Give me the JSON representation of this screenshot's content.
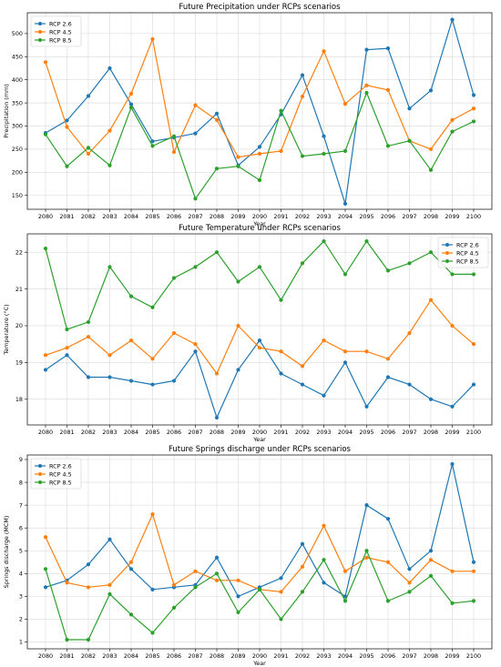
{
  "chart_data": [
    {
      "type": "line",
      "title": "Future Precipitation under RCPs scenarios",
      "xlabel": "Year",
      "ylabel": "Precipitation (mm)",
      "x": [
        "2080",
        "2081",
        "2082",
        "2083",
        "2084",
        "2085",
        "2086",
        "2087",
        "2088",
        "2089",
        "2090",
        "2091",
        "2092",
        "2093",
        "2094",
        "2095",
        "2096",
        "2097",
        "2098",
        "2099",
        "2100"
      ],
      "ylim": [
        120,
        545
      ],
      "yticks": [
        150,
        200,
        250,
        300,
        350,
        400,
        450,
        500
      ],
      "ytick_labels": [
        "150",
        "200",
        "250",
        "300",
        "350",
        "400",
        "450",
        "500"
      ],
      "grid": true,
      "legend": "upper left",
      "series": [
        {
          "name": "RCP 2.6",
          "color": "#1f77b4",
          "values": [
            285,
            312,
            365,
            425,
            347,
            267,
            275,
            284,
            327,
            215,
            255,
            325,
            410,
            278,
            132,
            465,
            468,
            338,
            377,
            530,
            367
          ]
        },
        {
          "name": "RCP 4.5",
          "color": "#ff7f0e",
          "values": [
            438,
            298,
            240,
            290,
            370,
            488,
            244,
            345,
            313,
            233,
            240,
            246,
            364,
            462,
            348,
            388,
            378,
            268,
            250,
            313,
            338
          ]
        },
        {
          "name": "RCP 8.5",
          "color": "#2ca02c",
          "values": [
            282,
            213,
            253,
            215,
            340,
            257,
            278,
            143,
            208,
            213,
            183,
            333,
            235,
            240,
            246,
            372,
            257,
            268,
            205,
            288,
            310
          ]
        }
      ]
    },
    {
      "type": "line",
      "title": "Future Temperature under RCPs scenarios",
      "xlabel": "Year",
      "ylabel": "Temperature (°C)",
      "x": [
        "2080",
        "2081",
        "2082",
        "2083",
        "2084",
        "2085",
        "2086",
        "2087",
        "2088",
        "2089",
        "2090",
        "2091",
        "2092",
        "2093",
        "2094",
        "2095",
        "2096",
        "2097",
        "2098",
        "2099",
        "2100"
      ],
      "ylim": [
        17.3,
        22.5
      ],
      "yticks": [
        18,
        19,
        20,
        21,
        22
      ],
      "ytick_labels": [
        "18",
        "19",
        "20",
        "21",
        "22"
      ],
      "grid": true,
      "legend": "upper right",
      "series": [
        {
          "name": "RCP 2.6",
          "color": "#1f77b4",
          "values": [
            18.8,
            19.2,
            18.6,
            18.6,
            18.5,
            18.4,
            18.5,
            19.3,
            17.5,
            18.8,
            19.6,
            18.7,
            18.4,
            18.1,
            19.0,
            17.8,
            18.6,
            18.4,
            18.0,
            17.8,
            18.4
          ]
        },
        {
          "name": "RCP 4.5",
          "color": "#ff7f0e",
          "values": [
            19.2,
            19.4,
            19.7,
            19.2,
            19.6,
            19.1,
            19.8,
            19.5,
            18.7,
            20.0,
            19.4,
            19.3,
            18.9,
            19.6,
            19.3,
            19.3,
            19.1,
            19.8,
            20.7,
            20.0,
            19.5
          ]
        },
        {
          "name": "RCP 8.5",
          "color": "#2ca02c",
          "values": [
            22.1,
            19.9,
            20.1,
            21.6,
            20.8,
            20.5,
            21.3,
            21.6,
            22.0,
            21.2,
            21.6,
            20.7,
            21.7,
            22.3,
            21.4,
            22.3,
            21.5,
            21.7,
            22.0,
            21.4,
            21.4
          ]
        }
      ]
    },
    {
      "type": "line",
      "title": "Future Springs discharge under RCPs scenarios",
      "xlabel": "Year",
      "ylabel": "Springs discharge (MCM)",
      "x": [
        "2080",
        "2081",
        "2082",
        "2083",
        "2084",
        "2085",
        "2086",
        "2087",
        "2088",
        "2089",
        "2090",
        "2091",
        "2092",
        "2093",
        "2094",
        "2095",
        "2096",
        "2097",
        "2098",
        "2099",
        "2100"
      ],
      "ylim": [
        0.7,
        9.2
      ],
      "yticks": [
        1,
        2,
        3,
        4,
        5,
        6,
        7,
        8,
        9
      ],
      "ytick_labels": [
        "1",
        "2",
        "3",
        "4",
        "5",
        "6",
        "7",
        "8",
        "9"
      ],
      "grid": true,
      "legend": "upper left",
      "series": [
        {
          "name": "RCP 2.6",
          "color": "#1f77b4",
          "values": [
            3.4,
            3.7,
            4.4,
            5.5,
            4.2,
            3.3,
            3.4,
            3.5,
            4.7,
            3.0,
            3.4,
            3.8,
            5.3,
            3.6,
            3.0,
            7.0,
            6.4,
            4.2,
            5.0,
            8.8,
            4.5
          ]
        },
        {
          "name": "RCP 4.5",
          "color": "#ff7f0e",
          "values": [
            5.6,
            3.6,
            3.4,
            3.5,
            4.5,
            6.6,
            3.5,
            4.1,
            3.7,
            3.7,
            3.3,
            3.2,
            4.3,
            6.1,
            4.1,
            4.7,
            4.5,
            3.6,
            4.6,
            4.1,
            4.1
          ]
        },
        {
          "name": "RCP 8.5",
          "color": "#2ca02c",
          "values": [
            4.2,
            1.1,
            1.1,
            3.1,
            2.2,
            1.4,
            2.5,
            3.4,
            4.0,
            2.3,
            3.3,
            2.0,
            3.2,
            4.6,
            2.8,
            5.0,
            2.8,
            3.2,
            3.9,
            2.7,
            2.8
          ]
        }
      ]
    }
  ]
}
